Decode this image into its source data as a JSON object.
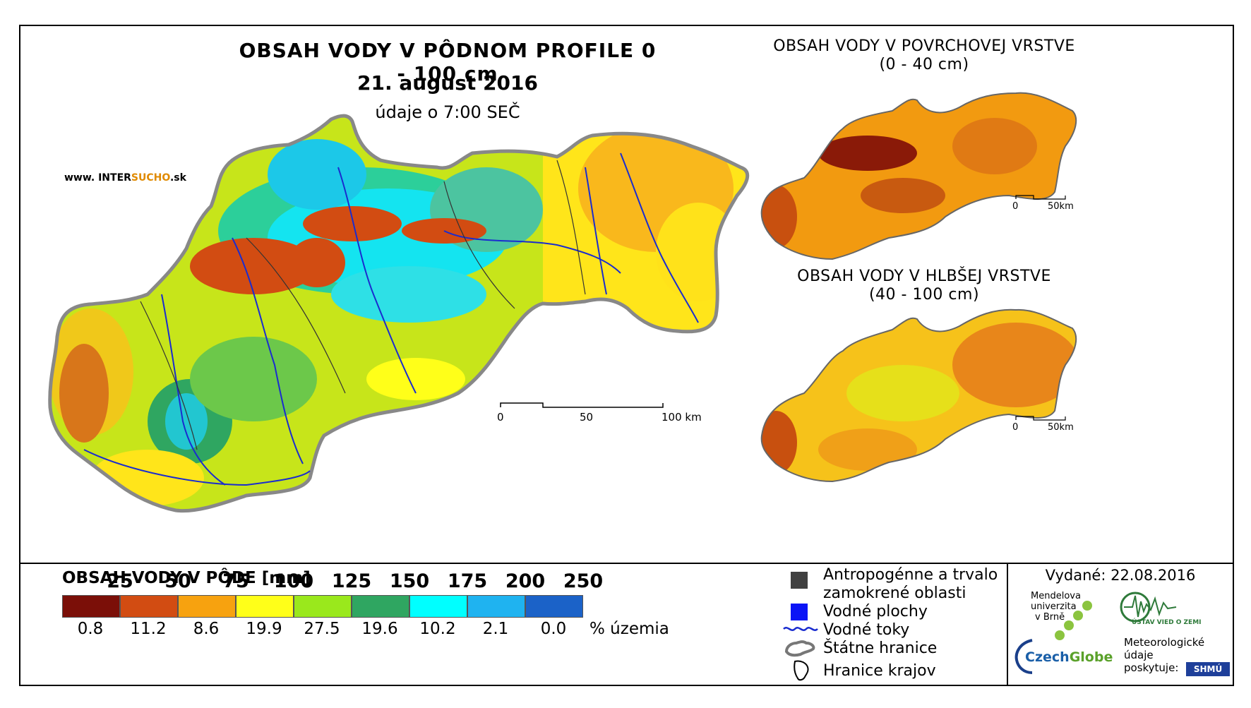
{
  "title": {
    "main": "OBSAH VODY V PÔDNOM PROFILE 0 - 100 cm",
    "date": "21. august 2016",
    "time": "údaje o 7:00 SEČ"
  },
  "website": {
    "prefix": "www. INTER",
    "highlight": "SUCHO",
    "suffix": ".sk"
  },
  "inset_surface": {
    "title_line1": "OBSAH VODY V POVRCHOVEJ VRSTVE",
    "title_line2": "(0 - 40 cm)",
    "scale": [
      "0",
      "50km"
    ]
  },
  "inset_deep": {
    "title_line1": "OBSAH VODY V HLBŠEJ VRSTVE",
    "title_line2": "(40 - 100 cm)",
    "scale": [
      "0",
      "50km"
    ]
  },
  "main_scale": [
    "0",
    "50",
    "100 km"
  ],
  "legend": {
    "title": "OBSAH VODY V PÔDE [mm]",
    "class_labels": [
      "25",
      "50",
      "75",
      "100",
      "125",
      "150",
      "175",
      "200",
      "250"
    ],
    "colors": [
      "#7b0f08",
      "#d24c12",
      "#f7a20f",
      "#ffff19",
      "#9ae81c",
      "#2fa661",
      "#00ffff",
      "#1fb3f0",
      "#1b62c8"
    ],
    "percentages": [
      "0.8",
      "11.2",
      "8.6",
      "19.9",
      "27.5",
      "19.6",
      "10.2",
      "2.1",
      "0.0"
    ],
    "unit": "% územia"
  },
  "features": {
    "anthropogenic_line1": "Antropogénne a trvalo",
    "anthropogenic_line2": "zamokrené oblasti",
    "water_bodies": "Vodné plochy",
    "rivers": "Vodné toky",
    "state_border": "Štátne hranice",
    "region_border": "Hranice krajov"
  },
  "issued": "Vydané: 22.08.2016",
  "logos": {
    "mendel_line1": "Mendelova",
    "mendel_line2": "univerzita",
    "mendel_line3": "v Brně",
    "czechglobe_a": "Czech",
    "czechglobe_b": "Globe",
    "uvz": "ÚSTAV VIED O ZEMI",
    "meteo_line1": "Meteorologické",
    "meteo_line2": "údaje",
    "meteo_line3": "poskytuje:",
    "shmu": "SHMÚ"
  }
}
